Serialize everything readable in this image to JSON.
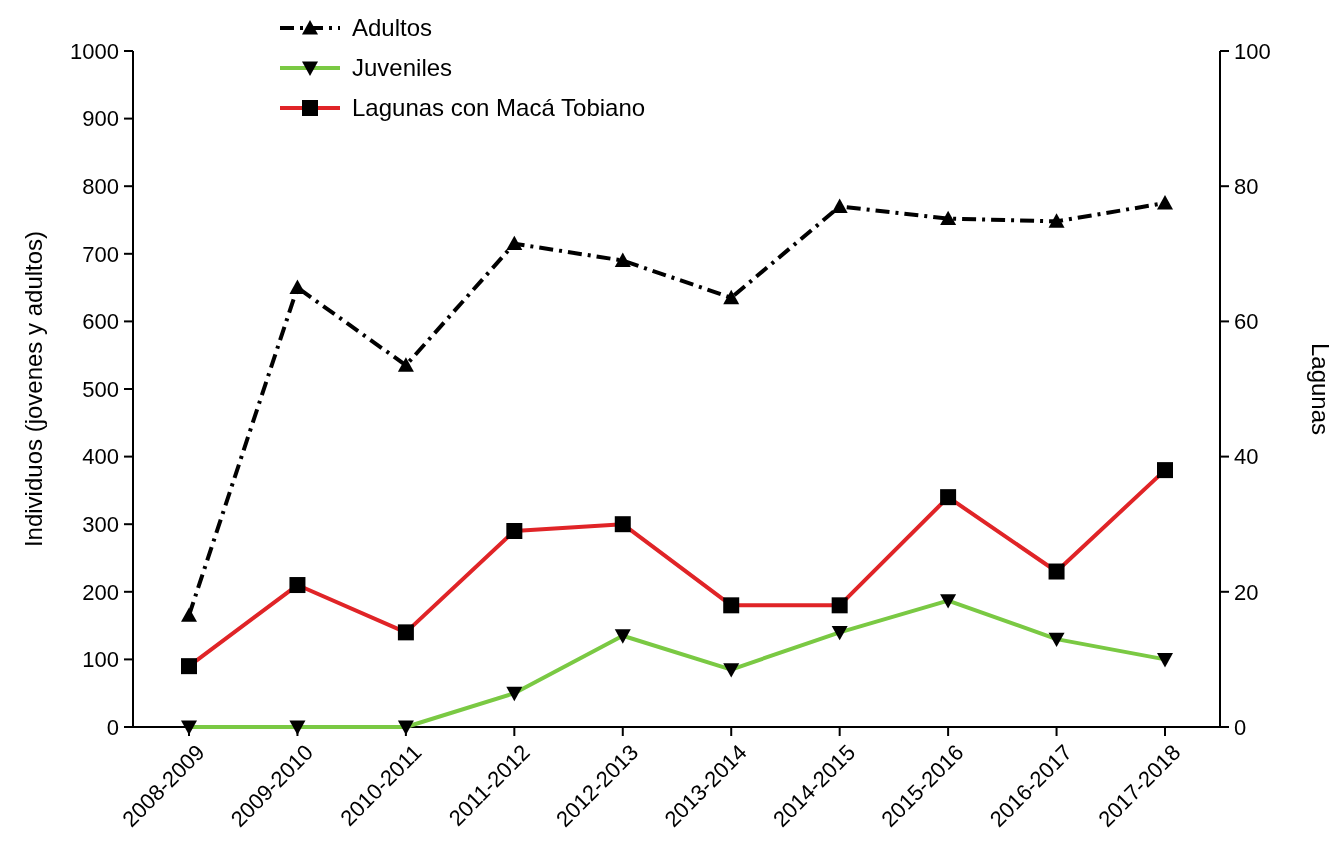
{
  "chart_data": {
    "type": "line",
    "ylabel": "Individuos (jovenes y adultos)",
    "y2label": "Lagunas",
    "categories": [
      "2008-2009",
      "2009-2010",
      "2010-2011",
      "2011-2012",
      "2012-2013",
      "2013-2014",
      "2014-2015",
      "2015-2016",
      "2016-2017",
      "2017-2018"
    ],
    "series": [
      {
        "name": "Adultos",
        "color": "#000000",
        "marker": "triangle",
        "line_style": "dashed",
        "values": [
          165,
          650,
          535,
          715,
          690,
          635,
          770,
          752,
          748,
          775
        ]
      },
      {
        "name": "Juveniles",
        "color": "#7ac943",
        "marker": "triangle-down",
        "line_style": "solid",
        "values": [
          0,
          0,
          0,
          50,
          135,
          85,
          140,
          187,
          130,
          100
        ]
      },
      {
        "name": "Lagunas con Macá Tobiano",
        "color": "#e02427",
        "marker": "square",
        "line_style": "solid",
        "axis": "y2",
        "values": [
          9,
          21,
          14,
          29,
          30,
          18,
          18,
          34,
          23,
          38
        ]
      }
    ],
    "ylim": [
      0,
      1000
    ],
    "yticks": [
      0,
      100,
      200,
      300,
      400,
      500,
      600,
      700,
      800,
      900,
      1000
    ],
    "y2lim": [
      0,
      100
    ],
    "y2ticks": [
      0,
      20,
      40,
      60,
      80,
      100
    ],
    "grid": false,
    "legend": "top left"
  }
}
